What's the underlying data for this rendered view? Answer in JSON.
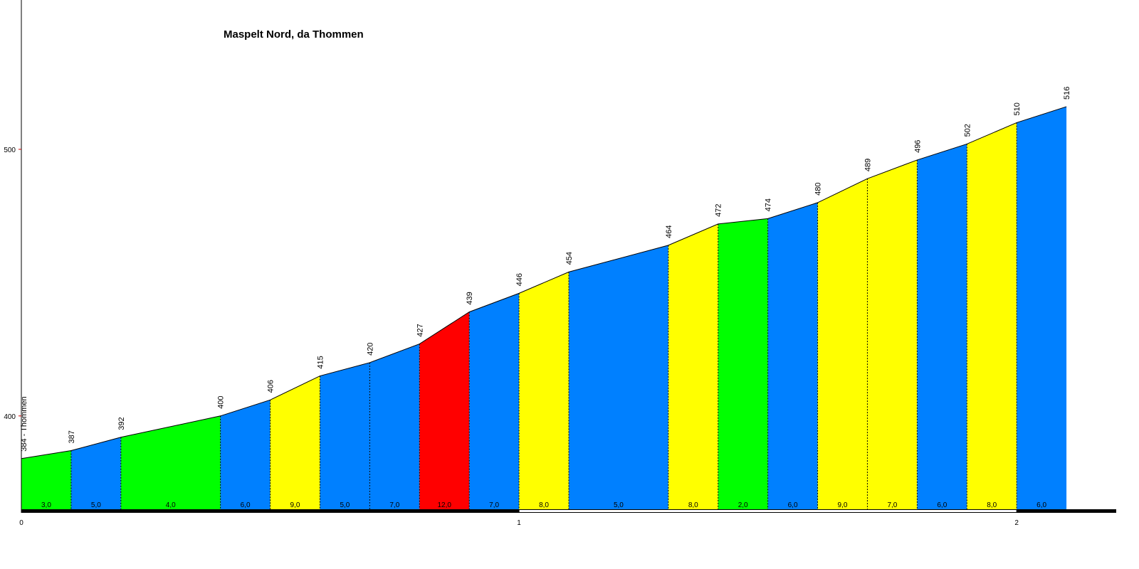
{
  "chart_data": {
    "type": "profile",
    "title": "Maspelt Nord, da Thommen",
    "x": [
      0,
      0.1,
      0.2,
      0.4,
      0.5,
      0.6,
      0.7,
      0.8,
      0.9,
      1.0,
      1.1,
      1.3,
      1.4,
      1.5,
      1.6,
      1.7,
      1.8,
      1.9,
      2.0,
      2.1
    ],
    "values": [
      384,
      387,
      392,
      400,
      406,
      415,
      420,
      427,
      439,
      446,
      454,
      464,
      472,
      474,
      480,
      489,
      496,
      502,
      510,
      516
    ],
    "value_labels": [
      "384 - Thommen",
      "387",
      "392",
      "400",
      "406",
      "415",
      "420",
      "427",
      "439",
      "446",
      "454",
      "464",
      "472",
      "474",
      "480",
      "489",
      "496",
      "502",
      "510",
      "516"
    ],
    "segments": {
      "values": [
        3.0,
        5.0,
        4.0,
        6.0,
        9.0,
        5.0,
        7.0,
        12.0,
        7.0,
        8.0,
        5.0,
        8.0,
        2.0,
        6.0,
        9.0,
        7.0,
        6.0,
        8.0,
        6.0
      ],
      "value_labels": [
        "3,0",
        "5,0",
        "4,0",
        "6,0",
        "9,0",
        "5,0",
        "7,0",
        "12,0",
        "7,0",
        "8,0",
        "5,0",
        "8,0",
        "2,0",
        "6,0",
        "9,0",
        "7,0",
        "6,0",
        "8,0",
        "6,0"
      ],
      "colors": [
        "#00ff00",
        "#0080ff",
        "#00ff00",
        "#0080ff",
        "#ffff00",
        "#0080ff",
        "#0080ff",
        "#ff0000",
        "#0080ff",
        "#ffff00",
        "#0080ff",
        "#ffff00",
        "#00ff00",
        "#0080ff",
        "#ffff00",
        "#ffff00",
        "#0080ff",
        "#ffff00",
        "#0080ff"
      ]
    },
    "xlim": [
      0,
      2.2
    ],
    "xticks": [
      0,
      1,
      2
    ],
    "ylim": [
      365,
      556
    ],
    "yticks": [
      400,
      500
    ]
  }
}
